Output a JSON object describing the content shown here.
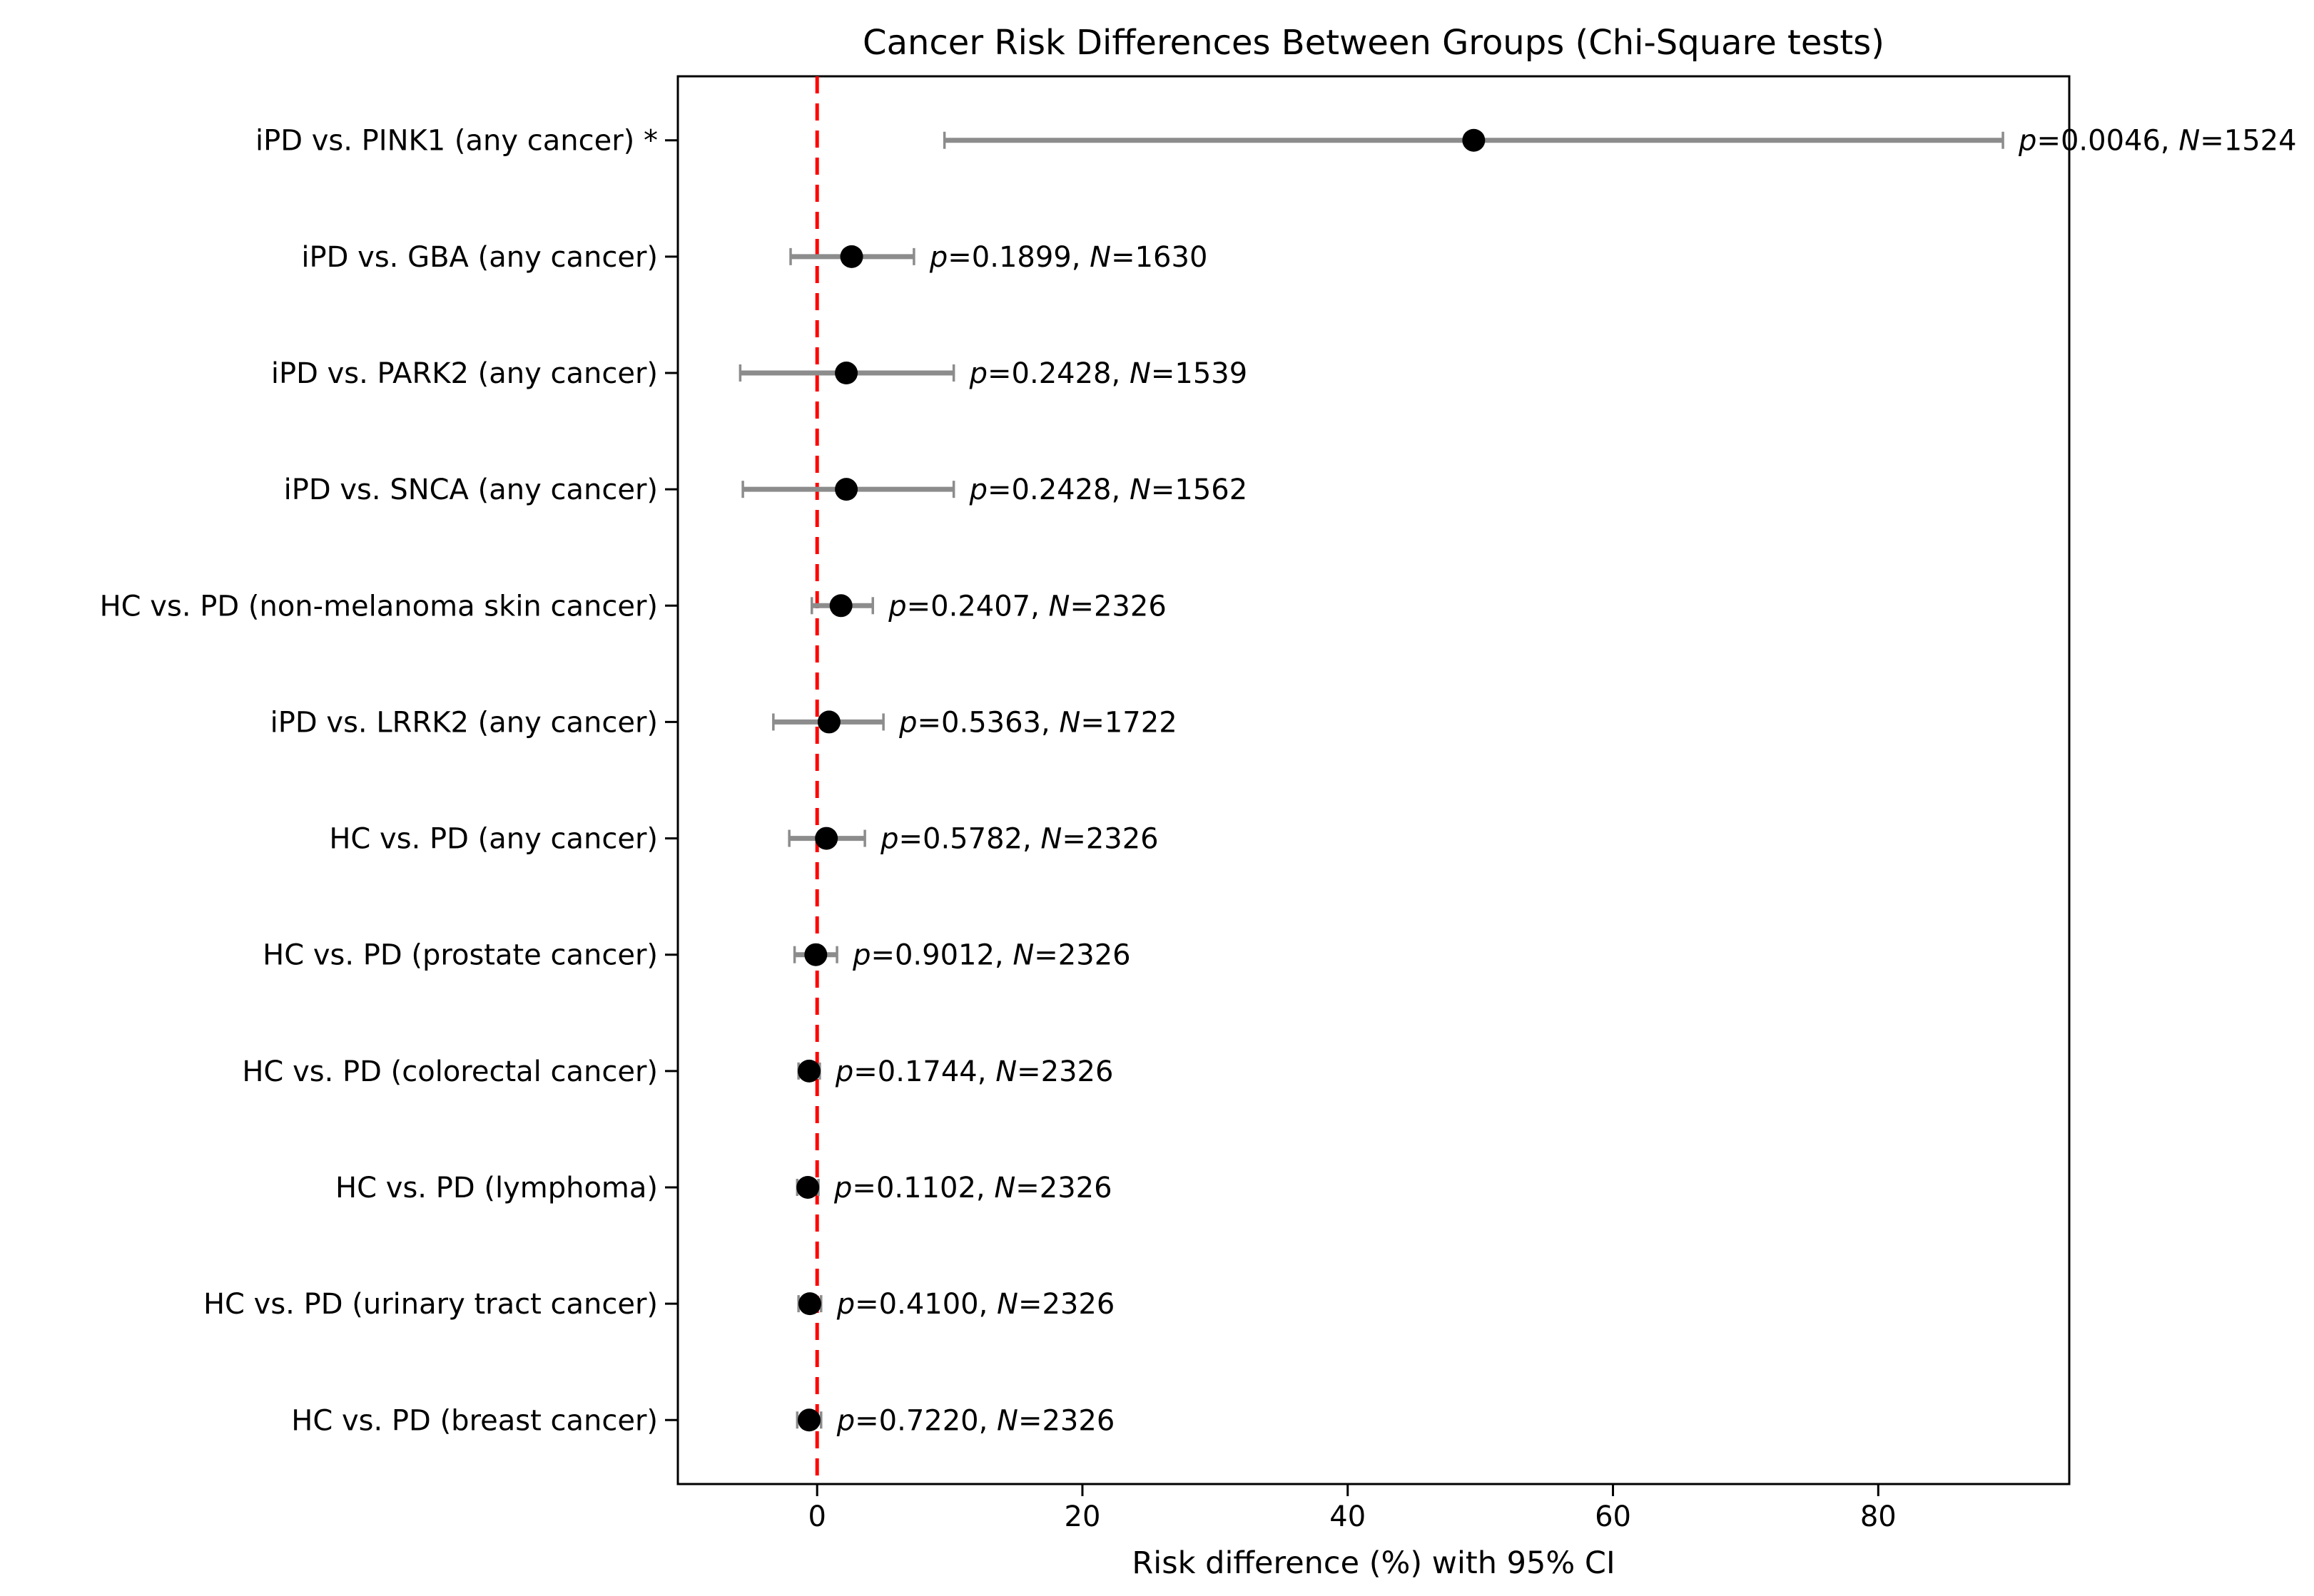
{
  "chart_data": {
    "type": "scatter",
    "subtype": "forest-errorbar",
    "title": "Cancer Risk Differences Between Groups (Chi-Square tests)",
    "xlabel": "Risk difference (%) with 95% CI",
    "xlim": [
      -10.5,
      94.4
    ],
    "xticks": [
      0,
      20,
      40,
      60,
      80
    ],
    "xtick_labels": [
      "0",
      "20",
      "40",
      "60",
      "80"
    ],
    "grid": false,
    "legend": false,
    "reference_line": {
      "x": 0,
      "color": "#ff0000",
      "style": "dashed"
    },
    "colors": {
      "marker": "#000000",
      "errorbar": "#8c8c8c",
      "axis": "#000000",
      "text": "#000000"
    },
    "annotation_format": {
      "p_symbol": "p",
      "n_symbol": "N",
      "equals": "=",
      "separator": ", "
    },
    "significance_marker": "*",
    "rows": [
      {
        "label": "iPD vs. PINK1 (any cancer) *",
        "value": 49.5,
        "ci_low": 9.6,
        "ci_high": 89.4,
        "p": "0.0046",
        "n": "1524"
      },
      {
        "label": "iPD vs. GBA (any cancer)",
        "value": 2.6,
        "ci_low": -2.0,
        "ci_high": 7.3,
        "p": "0.1899",
        "n": "1630"
      },
      {
        "label": "iPD vs. PARK2 (any cancer)",
        "value": 2.2,
        "ci_low": -5.8,
        "ci_high": 10.3,
        "p": "0.2428",
        "n": "1539"
      },
      {
        "label": "iPD vs. SNCA (any cancer)",
        "value": 2.2,
        "ci_low": -5.6,
        "ci_high": 10.3,
        "p": "0.2428",
        "n": "1562"
      },
      {
        "label": "HC vs. PD (non-melanoma skin cancer)",
        "value": 1.8,
        "ci_low": -0.4,
        "ci_high": 4.2,
        "p": "0.2407",
        "n": "2326"
      },
      {
        "label": "iPD vs. LRRK2 (any cancer)",
        "value": 0.9,
        "ci_low": -3.3,
        "ci_high": 5.0,
        "p": "0.5363",
        "n": "1722"
      },
      {
        "label": "HC vs. PD (any cancer)",
        "value": 0.7,
        "ci_low": -2.1,
        "ci_high": 3.6,
        "p": "0.5782",
        "n": "2326"
      },
      {
        "label": "HC vs. PD (prostate cancer)",
        "value": -0.1,
        "ci_low": -1.7,
        "ci_high": 1.5,
        "p": "0.9012",
        "n": "2326"
      },
      {
        "label": "HC vs. PD (colorectal cancer)",
        "value": -0.6,
        "ci_low": -1.4,
        "ci_high": 0.2,
        "p": "0.1744",
        "n": "2326"
      },
      {
        "label": "HC vs. PD (lymphoma)",
        "value": -0.7,
        "ci_low": -1.5,
        "ci_high": 0.1,
        "p": "0.1102",
        "n": "2326"
      },
      {
        "label": "HC vs. PD (urinary tract cancer)",
        "value": -0.55,
        "ci_low": -1.4,
        "ci_high": 0.3,
        "p": "0.4100",
        "n": "2326"
      },
      {
        "label": "HC vs. PD (breast cancer)",
        "value": -0.6,
        "ci_low": -1.5,
        "ci_high": 0.3,
        "p": "0.7220",
        "n": "2326"
      }
    ]
  }
}
